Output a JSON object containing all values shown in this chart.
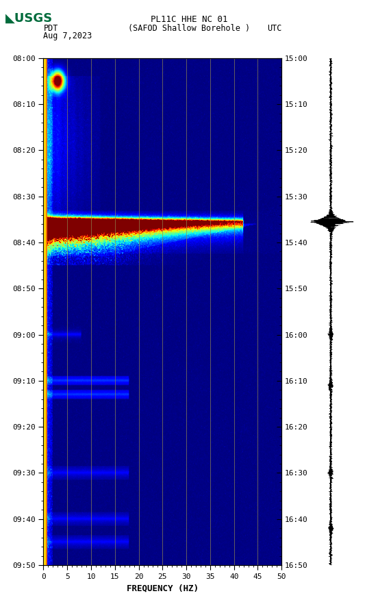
{
  "title_line1": "PL11C HHE NC 01",
  "title_line2": "(SAFOD Shallow Borehole )",
  "date_str": "Aug 7,2023",
  "left_label": "PDT",
  "right_label": "UTC",
  "ylabel_left_ticks": [
    "08:00",
    "08:10",
    "08:20",
    "08:30",
    "08:40",
    "08:50",
    "09:00",
    "09:10",
    "09:20",
    "09:30",
    "09:40",
    "09:50"
  ],
  "ylabel_right_ticks": [
    "15:00",
    "15:10",
    "15:20",
    "15:30",
    "15:40",
    "15:50",
    "16:00",
    "16:10",
    "16:20",
    "16:30",
    "16:40",
    "16:50"
  ],
  "xlabel": "FREQUENCY (HZ)",
  "xmin": 0,
  "xmax": 50,
  "xticks": [
    0,
    5,
    10,
    15,
    20,
    25,
    30,
    35,
    40,
    45,
    50
  ],
  "freq_grid_lines": [
    5,
    10,
    15,
    20,
    25,
    30,
    35,
    40,
    45
  ],
  "usgs_green": "#006B3C",
  "fig_bg": "#FFFFFF"
}
